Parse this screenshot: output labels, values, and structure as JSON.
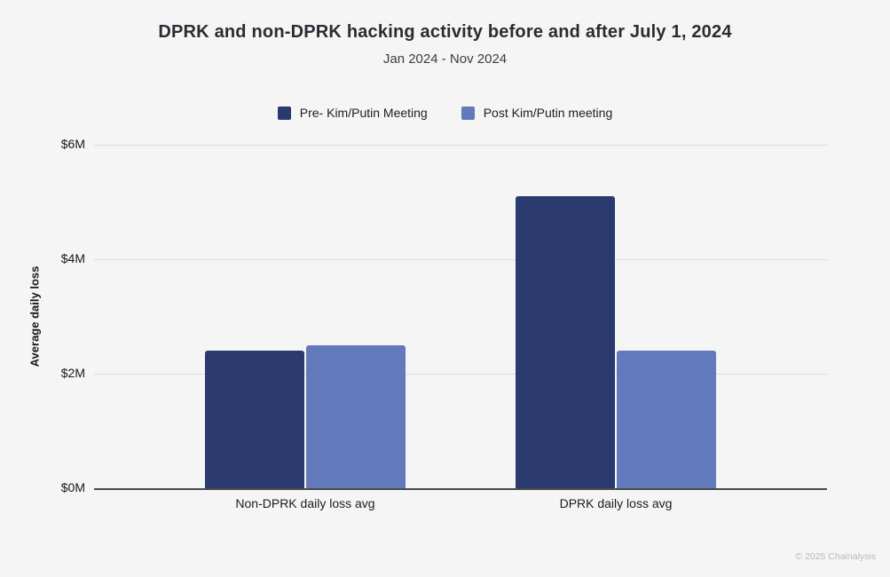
{
  "header": {
    "title": "DPRK and non-DPRK hacking activity before and after July 1, 2024",
    "subtitle": "Jan 2024 - Nov 2024"
  },
  "legend": [
    {
      "label": "Pre- Kim/Putin Meeting",
      "color": "#2b3a6e"
    },
    {
      "label": "Post Kim/Putin meeting",
      "color": "#6279bb"
    }
  ],
  "chart_data": {
    "type": "bar",
    "categories": [
      "Non-DPRK daily loss avg",
      "DPRK daily loss avg"
    ],
    "series": [
      {
        "name": "Pre- Kim/Putin Meeting",
        "color": "#2b3a6e",
        "values": [
          2.4,
          5.1
        ]
      },
      {
        "name": "Post Kim/Putin meeting",
        "color": "#6279bb",
        "values": [
          2.5,
          2.4
        ]
      }
    ],
    "title": "DPRK and non-DPRK hacking activity before and after July 1, 2024",
    "subtitle": "Jan 2024 - Nov 2024",
    "xlabel": "",
    "ylabel": "Average daily loss",
    "ylim": [
      0,
      6
    ],
    "yticks": [
      {
        "value": 6,
        "label": "$6M"
      },
      {
        "value": 4,
        "label": "$4M"
      },
      {
        "value": 2,
        "label": "$2M"
      },
      {
        "value": 0,
        "label": "$0M"
      }
    ],
    "value_unit": "USD millions",
    "grid": true,
    "legend_position": "top"
  },
  "colors": {
    "background": "#f5f5f5",
    "pre_series": "#2b3a6e",
    "post_series": "#6279bb",
    "gridline": "#dcdcdc",
    "axis_line": "#4a4a4a"
  },
  "footer": {
    "copyright": "© 2025 Chainalysis"
  }
}
